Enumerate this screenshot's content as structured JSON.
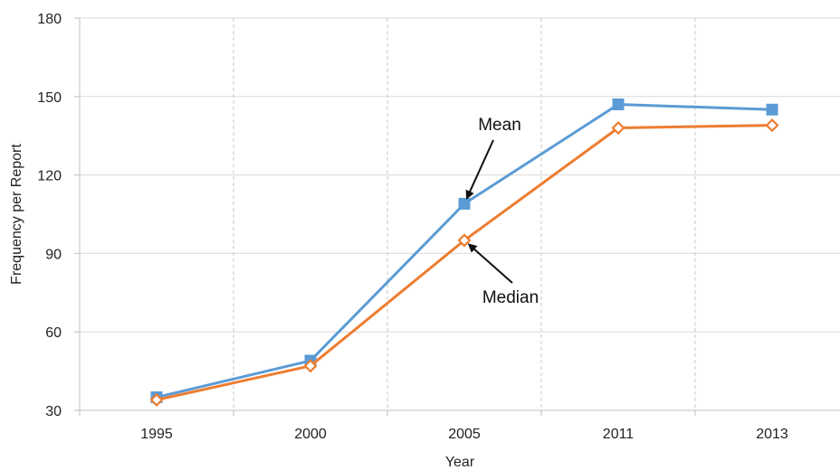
{
  "chart_data": {
    "type": "line",
    "categories": [
      "1995",
      "2000",
      "2005",
      "2011",
      "2013"
    ],
    "series": [
      {
        "name": "Mean",
        "values": [
          35,
          49,
          109,
          147,
          145
        ],
        "color": "#5b9bd5",
        "marker": "filled-square"
      },
      {
        "name": "Median",
        "values": [
          34,
          47,
          95,
          138,
          139
        ],
        "color": "#ed7d31",
        "marker": "hollow-diamond"
      }
    ],
    "title": "",
    "xlabel": "Year",
    "ylabel": "Frequency per Report",
    "ylim": [
      30,
      180
    ],
    "yticks": [
      30,
      60,
      90,
      120,
      150,
      180
    ],
    "grid": {
      "horizontal": true,
      "vertical_dashed": true
    },
    "legend": "none",
    "annotations": [
      {
        "text": "Mean",
        "points_to": {
          "category": "2005",
          "series": "Mean"
        }
      },
      {
        "text": "Median",
        "points_to": {
          "category": "2005",
          "series": "Median"
        }
      }
    ]
  }
}
